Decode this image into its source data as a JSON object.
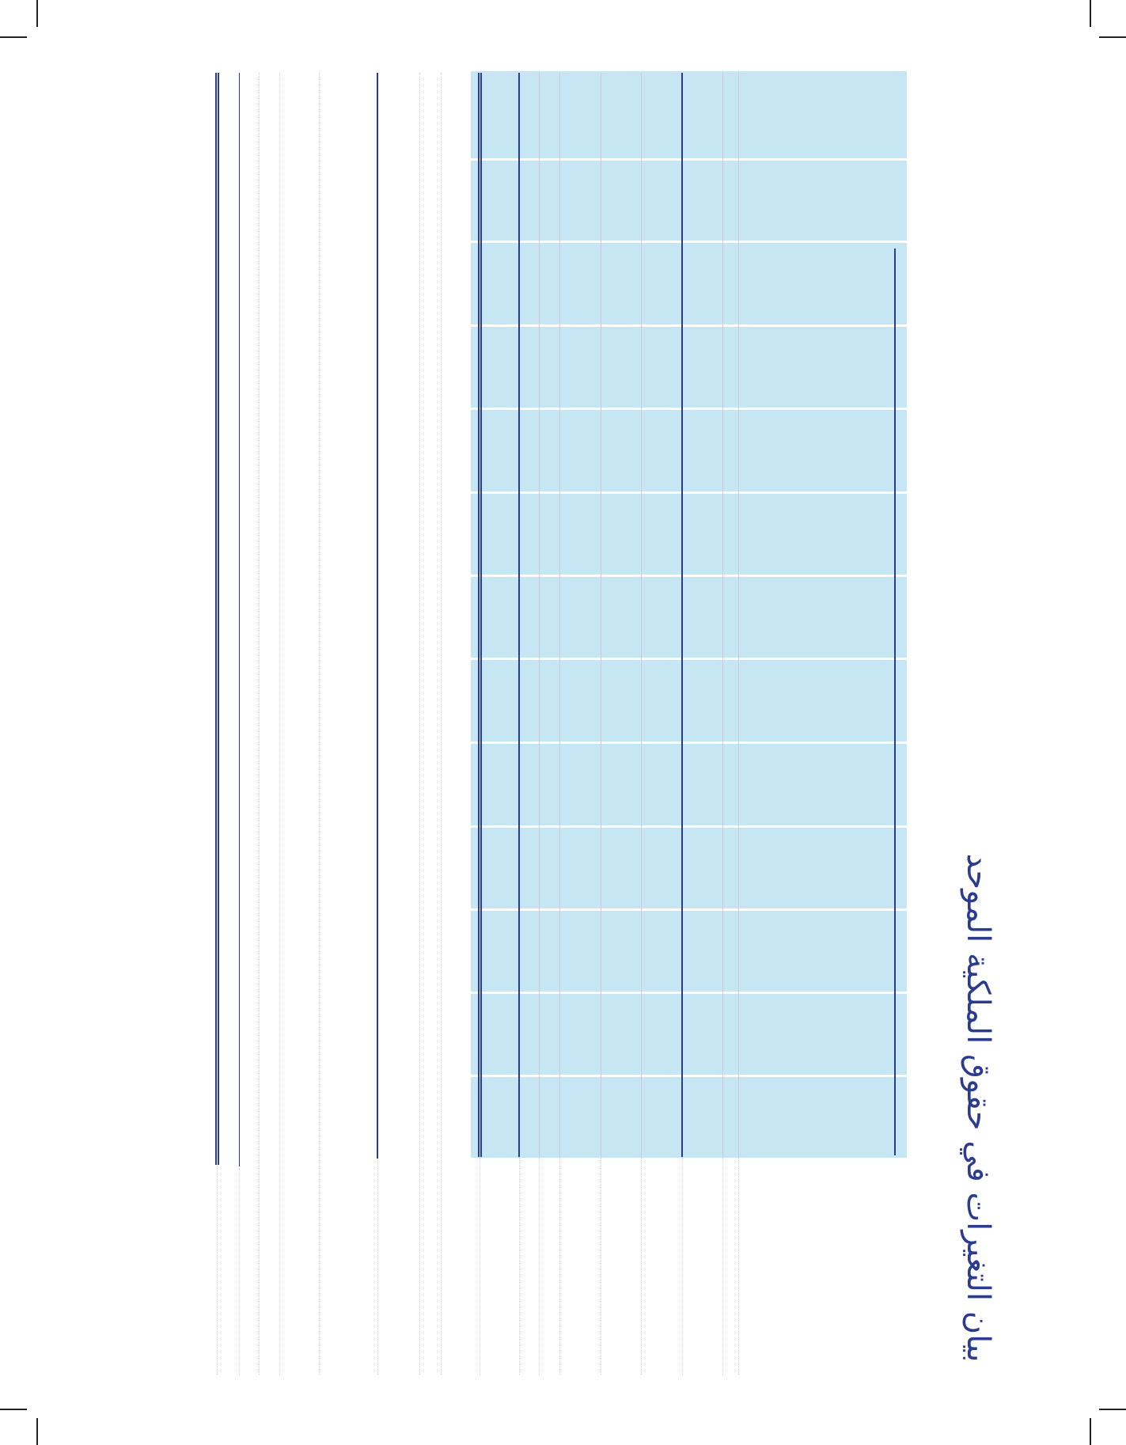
{
  "page": {
    "title": "بيان التغيرات في حقوق الملكية الموحد",
    "colors": {
      "accent": "#2b3b8e",
      "table_band": "#c7e6f3",
      "grid_light": "#c9ccd8"
    }
  }
}
